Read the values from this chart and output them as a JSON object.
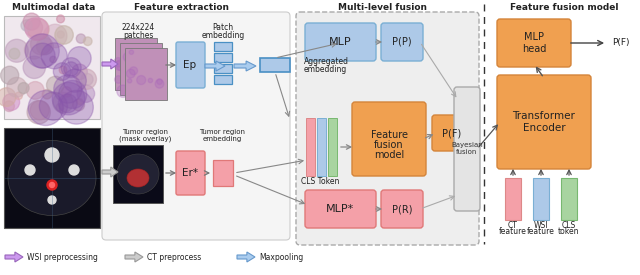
{
  "title_multimodal": "Multimodal data",
  "title_feature": "Feature extraction",
  "title_fusion": "Multi-level fusion",
  "title_ffmodel": "Feature fusion model",
  "colors": {
    "blue_box": "#adc9e8",
    "blue_dark": "#7aafd4",
    "blue_embed": "#4a90c4",
    "orange_box": "#f0a050",
    "orange_dark": "#d4843a",
    "pink_box": "#f4a0a8",
    "pink_dark": "#e07878",
    "green_box": "#a8d4a0",
    "green_dark": "#78b870",
    "gray_box": "#d0d0d0",
    "gray_light": "#ebebeb",
    "gray_fusion_bg": "#e8e8e8",
    "white": "#ffffff",
    "arrow_purple": "#9966bb",
    "arrow_purple_fill": "#cc99ee",
    "arrow_gray": "#aaaaaa",
    "arrow_blue": "#6699cc",
    "arrow_blue_fill": "#aaccee",
    "text_dark": "#222222",
    "border_gray": "#888888",
    "wsi_bg": "#f0e8ee",
    "ct_bg": "#0a0a14"
  },
  "legend": {
    "wsi": "WSI preprocessing",
    "ct": "CT preprocess",
    "max": "Maxpooling"
  },
  "layout": {
    "fig_w": 6.4,
    "fig_h": 2.75,
    "dpi": 100
  }
}
